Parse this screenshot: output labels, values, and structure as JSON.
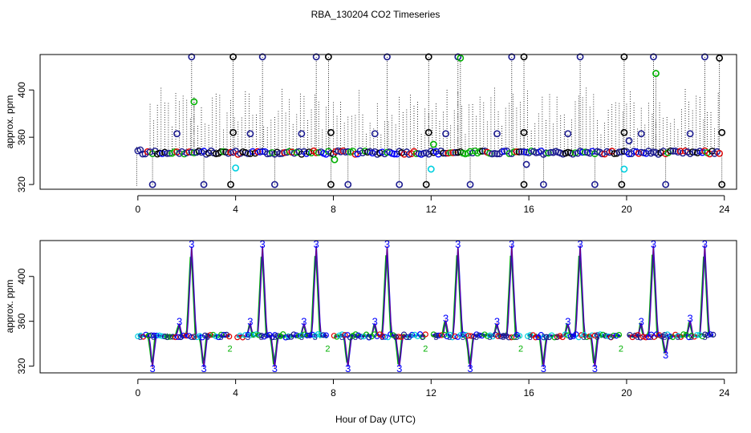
{
  "title": "RBA_130204  CO2 Timeseries",
  "xlabel": "Hour of Day (UTC)",
  "colors": {
    "background": "#ffffff",
    "axis": "#000000",
    "black": "#000000",
    "blue": "#0000ff",
    "navy": "#1b1b8f",
    "green": "#00b000",
    "cyan": "#00d0e0",
    "red": "#e00000"
  },
  "chart_data": [
    {
      "type": "scatter",
      "ylabel": "approx. ppm",
      "xlim": [
        -4,
        24.5
      ],
      "ylim": [
        316,
        430
      ],
      "xticks": [
        0,
        4,
        8,
        12,
        16,
        20,
        24
      ],
      "yticks": [
        320,
        360,
        400
      ],
      "baseline": 347,
      "high_points": [
        {
          "x": 2.2,
          "y": 428,
          "color": "navy"
        },
        {
          "x": 3.9,
          "y": 428,
          "color": "black"
        },
        {
          "x": 5.1,
          "y": 428,
          "color": "navy"
        },
        {
          "x": 7.3,
          "y": 428,
          "color": "navy"
        },
        {
          "x": 7.8,
          "y": 428,
          "color": "black"
        },
        {
          "x": 10.2,
          "y": 428,
          "color": "navy"
        },
        {
          "x": 11.9,
          "y": 428,
          "color": "black"
        },
        {
          "x": 13.1,
          "y": 428,
          "color": "navy"
        },
        {
          "x": 15.3,
          "y": 428,
          "color": "navy"
        },
        {
          "x": 15.8,
          "y": 428,
          "color": "black"
        },
        {
          "x": 18.1,
          "y": 428,
          "color": "navy"
        },
        {
          "x": 19.9,
          "y": 428,
          "color": "black"
        },
        {
          "x": 21.1,
          "y": 428,
          "color": "navy"
        },
        {
          "x": 23.2,
          "y": 428,
          "color": "navy"
        },
        {
          "x": 23.8,
          "y": 427,
          "color": "black"
        },
        {
          "x": 2.3,
          "y": 390,
          "color": "green"
        },
        {
          "x": 21.2,
          "y": 414,
          "color": "green"
        },
        {
          "x": 13.2,
          "y": 427,
          "color": "green"
        }
      ],
      "mid_points": [
        {
          "x": 1.6,
          "y": 363,
          "color": "navy"
        },
        {
          "x": 3.9,
          "y": 364,
          "color": "black"
        },
        {
          "x": 4.6,
          "y": 363,
          "color": "navy"
        },
        {
          "x": 6.7,
          "y": 363,
          "color": "navy"
        },
        {
          "x": 7.9,
          "y": 364,
          "color": "black"
        },
        {
          "x": 9.7,
          "y": 363,
          "color": "navy"
        },
        {
          "x": 11.9,
          "y": 364,
          "color": "black"
        },
        {
          "x": 12.6,
          "y": 363,
          "color": "navy"
        },
        {
          "x": 14.7,
          "y": 363,
          "color": "navy"
        },
        {
          "x": 15.8,
          "y": 364,
          "color": "black"
        },
        {
          "x": 17.6,
          "y": 363,
          "color": "navy"
        },
        {
          "x": 19.9,
          "y": 364,
          "color": "black"
        },
        {
          "x": 20.6,
          "y": 363,
          "color": "navy"
        },
        {
          "x": 22.6,
          "y": 363,
          "color": "navy"
        },
        {
          "x": 23.9,
          "y": 364,
          "color": "black"
        },
        {
          "x": 12.1,
          "y": 354,
          "color": "green"
        },
        {
          "x": 20.1,
          "y": 357,
          "color": "navy"
        },
        {
          "x": 15.9,
          "y": 337,
          "color": "navy"
        },
        {
          "x": 8.05,
          "y": 341,
          "color": "green"
        },
        {
          "x": 4.0,
          "y": 334,
          "color": "cyan"
        },
        {
          "x": 12.0,
          "y": 333,
          "color": "cyan"
        },
        {
          "x": 19.9,
          "y": 333,
          "color": "cyan"
        }
      ],
      "low_points": [
        {
          "x": 0.6,
          "y": 320,
          "color": "navy"
        },
        {
          "x": 2.7,
          "y": 320,
          "color": "navy"
        },
        {
          "x": 3.8,
          "y": 320,
          "color": "black"
        },
        {
          "x": 5.6,
          "y": 320,
          "color": "navy"
        },
        {
          "x": 7.9,
          "y": 320,
          "color": "black"
        },
        {
          "x": 8.6,
          "y": 320,
          "color": "navy"
        },
        {
          "x": 10.7,
          "y": 320,
          "color": "navy"
        },
        {
          "x": 11.8,
          "y": 320,
          "color": "black"
        },
        {
          "x": 13.6,
          "y": 320,
          "color": "navy"
        },
        {
          "x": 15.8,
          "y": 320,
          "color": "black"
        },
        {
          "x": 16.6,
          "y": 320,
          "color": "navy"
        },
        {
          "x": 18.7,
          "y": 320,
          "color": "navy"
        },
        {
          "x": 19.8,
          "y": 320,
          "color": "black"
        },
        {
          "x": 21.6,
          "y": 320,
          "color": "navy"
        },
        {
          "x": 23.9,
          "y": 320,
          "color": "black"
        }
      ]
    },
    {
      "type": "line",
      "ylabel": "approx. ppm",
      "xlim": [
        -4,
        24.5
      ],
      "ylim": [
        314,
        432
      ],
      "xticks": [
        0,
        4,
        8,
        12,
        16,
        20,
        24
      ],
      "yticks": [
        320,
        360,
        400
      ],
      "baseline": 347,
      "marker_label": "3",
      "marker_label_minor": "2",
      "peaks_up": [
        {
          "x": 2.2,
          "y": 427
        },
        {
          "x": 5.1,
          "y": 427
        },
        {
          "x": 7.3,
          "y": 427
        },
        {
          "x": 10.2,
          "y": 427
        },
        {
          "x": 13.1,
          "y": 427
        },
        {
          "x": 15.3,
          "y": 427
        },
        {
          "x": 18.1,
          "y": 427
        },
        {
          "x": 21.1,
          "y": 427
        },
        {
          "x": 23.2,
          "y": 427
        }
      ],
      "bumps_up": [
        {
          "x": 1.7,
          "y": 358
        },
        {
          "x": 4.6,
          "y": 358
        },
        {
          "x": 6.8,
          "y": 358
        },
        {
          "x": 9.7,
          "y": 358
        },
        {
          "x": 12.6,
          "y": 361
        },
        {
          "x": 14.7,
          "y": 358
        },
        {
          "x": 17.6,
          "y": 358
        },
        {
          "x": 20.6,
          "y": 358
        },
        {
          "x": 22.6,
          "y": 361
        }
      ],
      "dips_down": [
        {
          "x": 0.6,
          "y": 319
        },
        {
          "x": 2.7,
          "y": 319
        },
        {
          "x": 5.6,
          "y": 319
        },
        {
          "x": 8.6,
          "y": 319
        },
        {
          "x": 10.7,
          "y": 319
        },
        {
          "x": 13.6,
          "y": 319
        },
        {
          "x": 16.6,
          "y": 319
        },
        {
          "x": 18.7,
          "y": 319
        },
        {
          "x": 21.6,
          "y": 331
        }
      ],
      "gaps": [
        3.9,
        7.9,
        11.9,
        15.8,
        19.9
      ]
    }
  ]
}
